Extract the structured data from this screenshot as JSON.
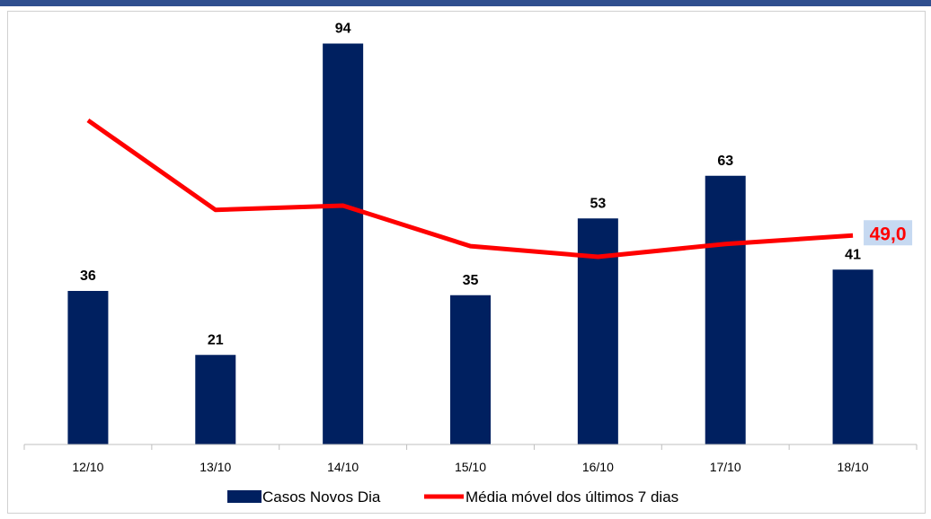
{
  "chart_data": {
    "type": "bar",
    "categories": [
      "12/10",
      "13/10",
      "14/10",
      "15/10",
      "16/10",
      "17/10",
      "18/10"
    ],
    "series": [
      {
        "name": "Casos Novos Dia",
        "type": "bar",
        "color": "#002060",
        "values": [
          36,
          21,
          94,
          35,
          53,
          63,
          41
        ]
      },
      {
        "name": "Média móvel dos últimos 7 dias",
        "type": "line",
        "color": "#ff0000",
        "values": [
          76.0,
          55.0,
          56.0,
          46.5,
          44.0,
          47.0,
          49.0
        ]
      }
    ],
    "highlight_label": "49,0",
    "highlight_bg": "#c6d9f1",
    "ylim": [
      0,
      100
    ],
    "grid": false,
    "legend_position": "bottom"
  }
}
